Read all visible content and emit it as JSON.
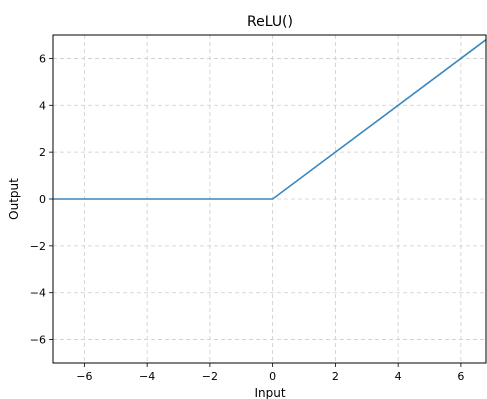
{
  "chart_data": {
    "type": "line",
    "title": "ReLU()",
    "xlabel": "Input",
    "ylabel": "Output",
    "xlim": [
      -7,
      6.8
    ],
    "ylim": [
      -7,
      7
    ],
    "x_ticks": [
      -6,
      -4,
      -2,
      0,
      2,
      4,
      6
    ],
    "y_ticks": [
      -6,
      -4,
      -2,
      0,
      2,
      4,
      6
    ],
    "x_tick_labels": [
      "−6",
      "−4",
      "−2",
      "0",
      "2",
      "4",
      "6"
    ],
    "y_tick_labels": [
      "−6",
      "−4",
      "−2",
      "0",
      "2",
      "4",
      "6"
    ],
    "grid": true,
    "series": [
      {
        "color": "#3a87bd",
        "x": [
          -7,
          0,
          6.8
        ],
        "y": [
          0,
          0,
          6.8
        ]
      }
    ]
  }
}
